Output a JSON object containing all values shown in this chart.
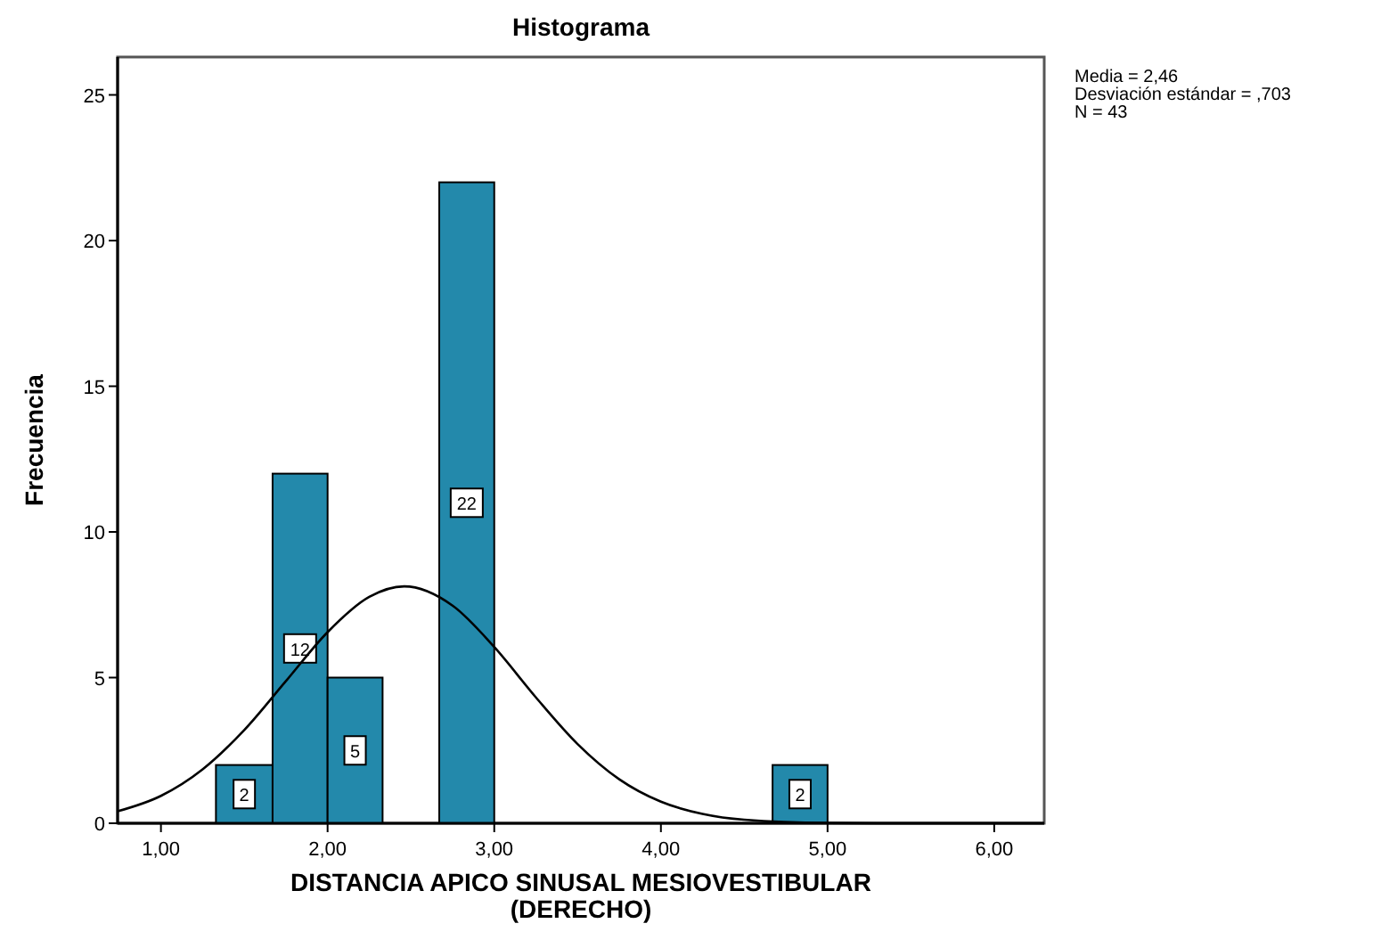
{
  "chart_data": {
    "type": "histogram",
    "title": "Histograma",
    "xlabel": "DISTANCIA APICO SINUSAL MESIOVESTIBULAR\n(DERECHO)",
    "ylabel": "Frecuencia",
    "bins": [
      1.33,
      1.67,
      2,
      2.33,
      2.67,
      3,
      4.67,
      5
    ],
    "series": [
      {
        "color": "#2389ab",
        "values": [
          2,
          12,
          5,
          0,
          22,
          0,
          2
        ],
        "value_labels": [
          "2",
          "12",
          "5",
          null,
          "22",
          null,
          "2"
        ]
      },
      {
        "type": "line",
        "color": "#000000",
        "x": [
          0.74,
          1,
          1.25,
          1.5,
          1.75,
          2,
          2.25,
          2.46,
          2.75,
          3,
          3.25,
          3.5,
          3.75,
          4,
          4.25,
          4.5,
          5,
          5.5,
          6.3
        ],
        "values": [
          0.41,
          0.94,
          1.85,
          3.2,
          4.88,
          6.56,
          7.77,
          8.13,
          7.47,
          6.05,
          4.32,
          2.72,
          1.51,
          0.74,
          0.32,
          0.12,
          0.01,
          0,
          0
        ]
      }
    ],
    "xlim": [
      0.74,
      6.3
    ],
    "xticks": [
      {
        "value": 1,
        "label": "1,00"
      },
      {
        "value": 2,
        "label": "2,00"
      },
      {
        "value": 3,
        "label": "3,00"
      },
      {
        "value": 4,
        "label": "4,00"
      },
      {
        "value": 5,
        "label": "5,00"
      },
      {
        "value": 6,
        "label": "6,00"
      }
    ],
    "ylim": [
      0,
      26.3
    ],
    "yticks": [
      0,
      5,
      10,
      15,
      20,
      25
    ],
    "annotations": [
      "Media = 2,46",
      "Desviación estándar = ,703",
      "N = 43"
    ]
  }
}
